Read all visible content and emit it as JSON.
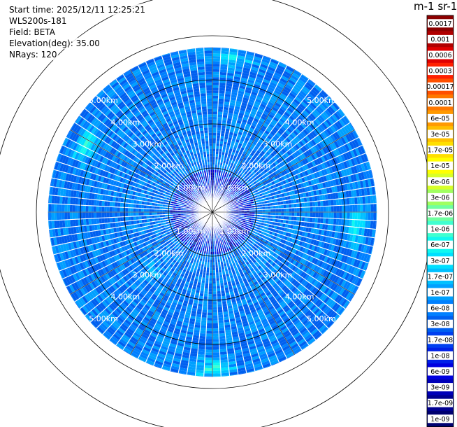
{
  "header": {
    "start_time": "Start time: 2025/12/11 12:25:21",
    "instrument": "WLS200s-181",
    "field": "Field: BETA",
    "elevation": "Elevation(deg): 35.00",
    "nrays": "NRays: 120"
  },
  "colorbar": {
    "title": "m-1 sr-1",
    "labels": [
      "0.0017",
      "0.001",
      "0.0006",
      "0.0003",
      "0.00017",
      "0.0001",
      "6e-05",
      "3e-05",
      "1.7e-05",
      "1e-05",
      "6e-06",
      "3e-06",
      "1.7e-06",
      "1e-06",
      "6e-07",
      "3e-07",
      "1.7e-07",
      "1e-07",
      "6e-08",
      "3e-08",
      "1.7e-08",
      "1e-08",
      "6e-09",
      "3e-09",
      "1.7e-09",
      "1e-09"
    ],
    "colors": [
      "#8b0000",
      "#b00000",
      "#e00000",
      "#ff2000",
      "#ff5000",
      "#ff7800",
      "#ff9a00",
      "#ffbf00",
      "#ffdf00",
      "#ffff00",
      "#d8ff28",
      "#a0ff60",
      "#70ffa0",
      "#40ffd0",
      "#10f8f0",
      "#00e0ff",
      "#00c0ff",
      "#00a0ff",
      "#0080ff",
      "#0060f0",
      "#0040f0",
      "#0020e8",
      "#0000e0",
      "#0000b8",
      "#000090",
      "#000070"
    ]
  },
  "chart_data": {
    "type": "heatmap",
    "projection": "PPI polar scan",
    "field": "BETA",
    "elevation_deg": 35.0,
    "n_rays": 120,
    "range_unit": "km",
    "max_range_km": 5.6,
    "range_rings_km": [
      1.0,
      2.0,
      3.0,
      4.0,
      5.0
    ],
    "ring_labels": [
      "1.00km",
      "2.00km",
      "3.00km",
      "4.00km",
      "5.00km"
    ],
    "ring_label_bearings_deg": [
      45,
      135,
      225,
      315
    ],
    "dominant_value_range": [
      3e-08,
      1.7e-07
    ],
    "near_range_value": 3e-09,
    "enhanced_regions": [
      {
        "bearing_deg": 8,
        "range_km": 5.3,
        "value": 1e-06
      },
      {
        "bearing_deg": 180,
        "range_km": 5.3,
        "value": 3e-06
      },
      {
        "bearing_deg": 298,
        "range_km": 4.9,
        "value": 3e-06
      },
      {
        "bearing_deg": 95,
        "range_km": 4.9,
        "value": 1.7e-06
      },
      {
        "bearing_deg": 225,
        "range_km": 2.9,
        "value": 3e-07
      }
    ]
  }
}
